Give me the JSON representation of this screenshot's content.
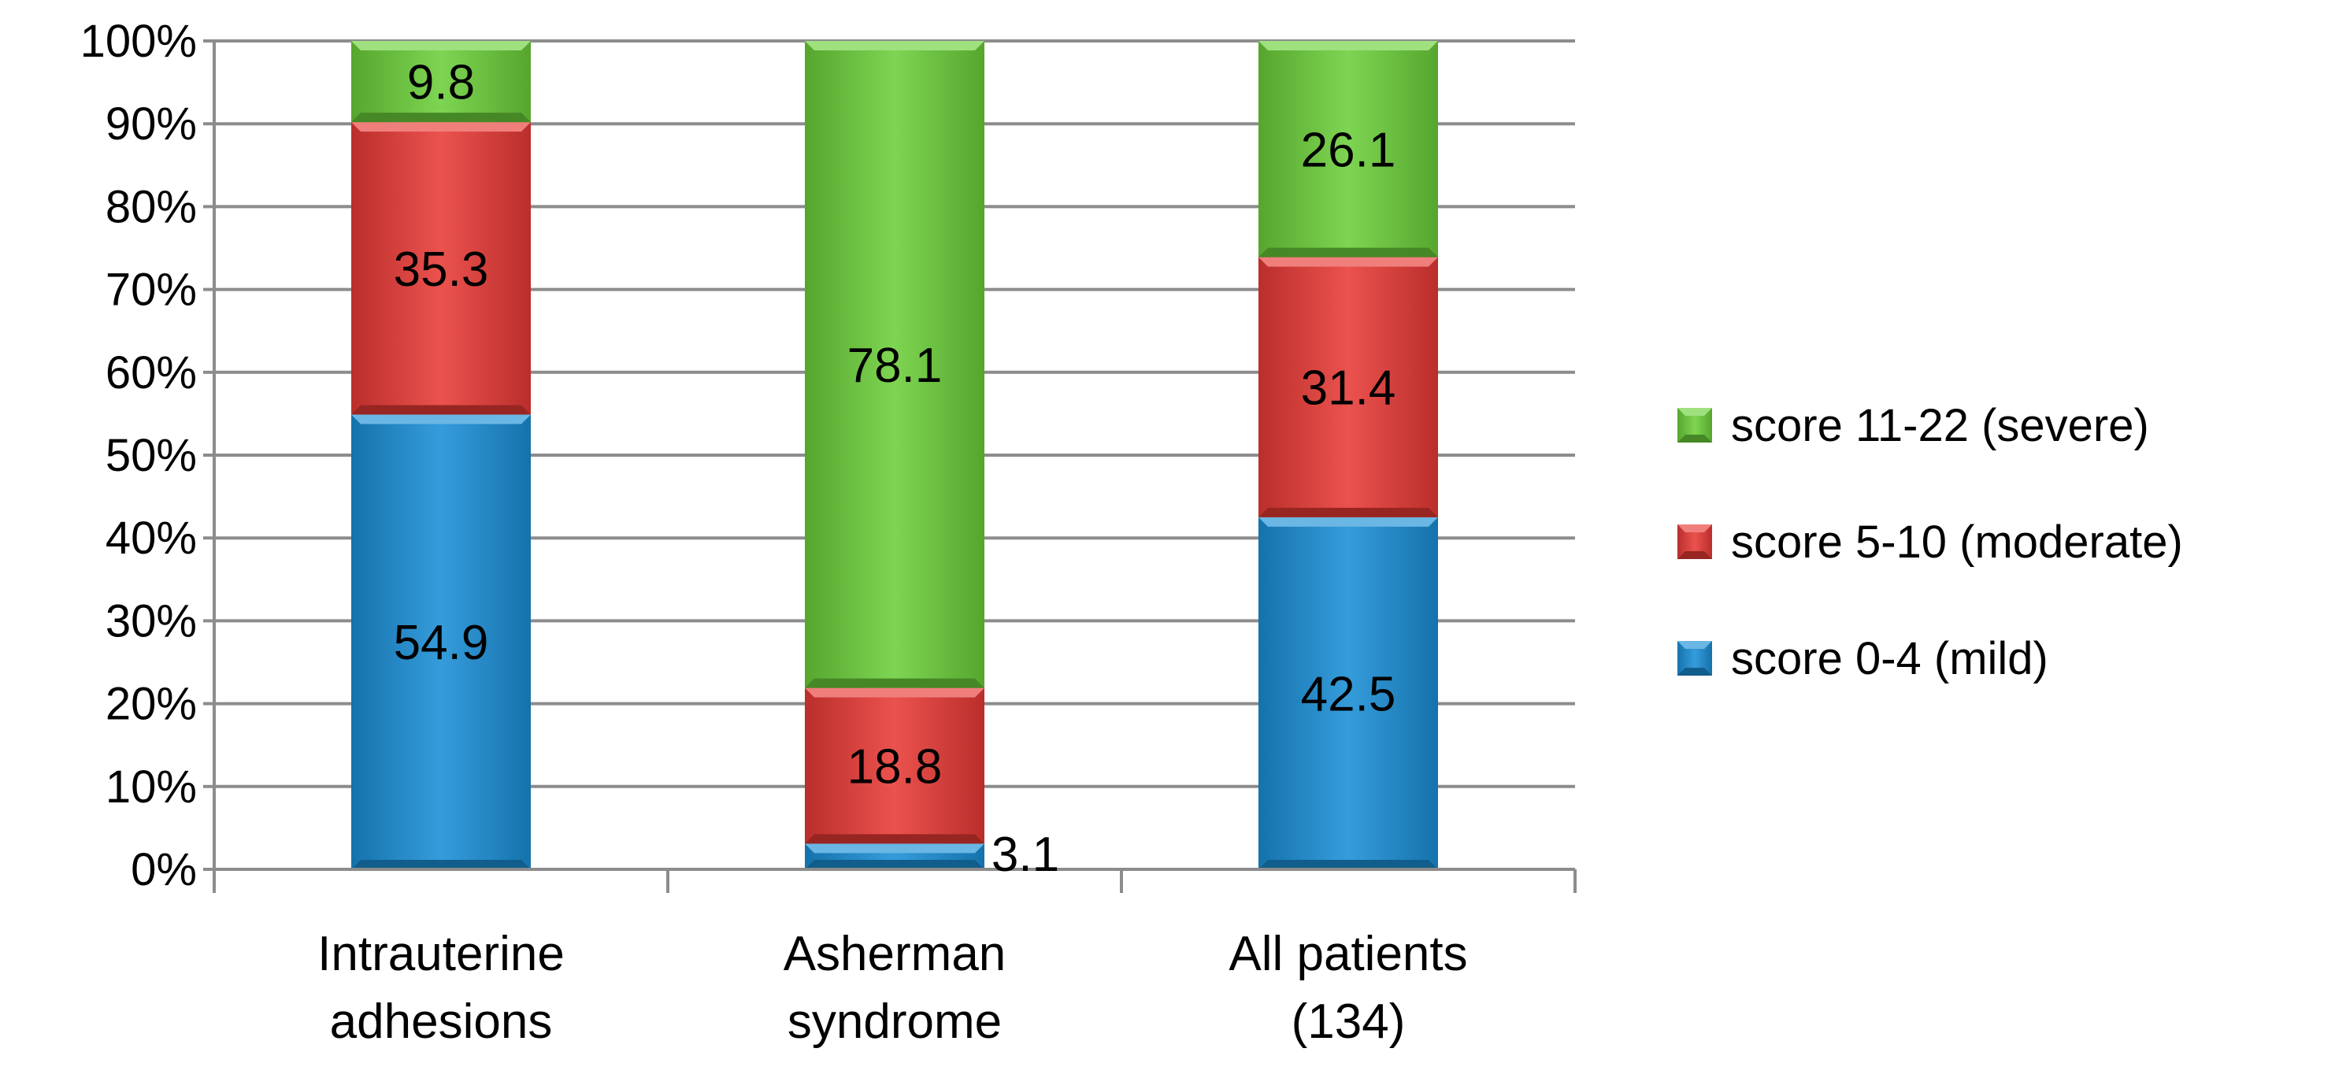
{
  "chart_data": {
    "type": "bar",
    "stacked": true,
    "title": "",
    "xlabel": "",
    "ylabel": "",
    "ylim": [
      0,
      100
    ],
    "y_ticks": [
      "0%",
      "10%",
      "20%",
      "30%",
      "40%",
      "50%",
      "60%",
      "70%",
      "80%",
      "90%",
      "100%"
    ],
    "grid": true,
    "legend_position": "right",
    "categories": [
      [
        "Intrauterine",
        "adhesions"
      ],
      [
        "Asherman",
        "syndrome"
      ],
      [
        "All patients",
        "(134)"
      ]
    ],
    "series": [
      {
        "name": "score 0-4 (mild)",
        "color": "#1a8fd6",
        "values": [
          54.9,
          3.1,
          42.5
        ]
      },
      {
        "name": "score 5-10 (moderate)",
        "color": "#e83a36",
        "values": [
          35.3,
          18.8,
          31.4
        ]
      },
      {
        "name": "score 11-22 (severe)",
        "color": "#6ccf3a",
        "values": [
          9.8,
          78.1,
          26.1
        ]
      }
    ],
    "data_labels": [
      [
        "54.9",
        "3.1",
        "42.5"
      ],
      [
        "35.3",
        "18.8",
        "31.4"
      ],
      [
        "9.8",
        "78.1",
        "26.1"
      ]
    ],
    "legend_order": [
      "score 11-22 (severe)",
      "score 5-10 (moderate)",
      "score 0-4 (mild)"
    ]
  }
}
